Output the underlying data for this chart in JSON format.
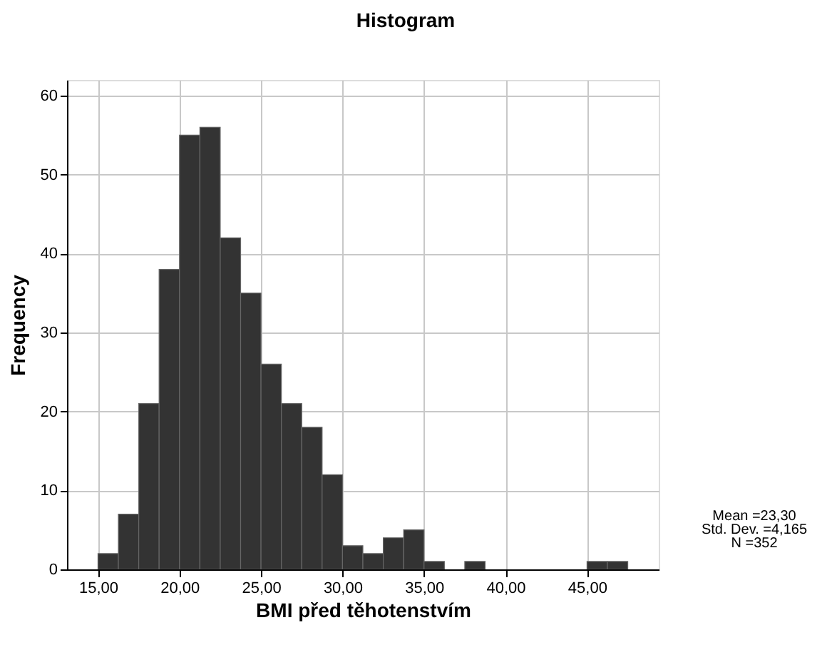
{
  "chart_data": {
    "type": "histogram",
    "title": "Histogram",
    "xlabel": "BMI před těhotenstvím",
    "ylabel": "Frequency",
    "bins": [
      15,
      16.25,
      17.5,
      18.75,
      20,
      21.25,
      22.5,
      23.75,
      25,
      26.25,
      27.5,
      28.75,
      30,
      31.25,
      32.5,
      33.75,
      35,
      36.25,
      37.5,
      38.75,
      40,
      41.25,
      42.5,
      43.75,
      45,
      46.25,
      47.5
    ],
    "values": [
      2,
      7,
      21,
      38,
      55,
      56,
      42,
      35,
      26,
      21,
      18,
      12,
      3,
      2,
      4,
      5,
      1,
      0,
      1,
      0,
      0,
      0,
      0,
      0,
      1,
      1
    ],
    "color": "#333333",
    "xlim": [
      13.1,
      49.4
    ],
    "xticks": [
      {
        "value": 15,
        "label": "15,00"
      },
      {
        "value": 20,
        "label": "20,00"
      },
      {
        "value": 25,
        "label": "25,00"
      },
      {
        "value": 30,
        "label": "30,00"
      },
      {
        "value": 35,
        "label": "35,00"
      },
      {
        "value": 40,
        "label": "40,00"
      },
      {
        "value": 45,
        "label": "45,00"
      }
    ],
    "ylim": [
      0,
      62
    ],
    "yticks": [
      0,
      10,
      20,
      30,
      40,
      50,
      60
    ],
    "grid": true,
    "annotations": [
      "Mean =23,30",
      "Std. Dev. =4,165",
      "N =352"
    ]
  }
}
